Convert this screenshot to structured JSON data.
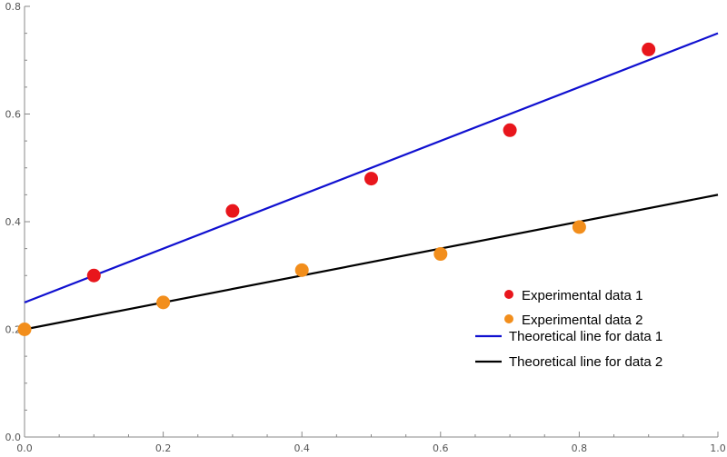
{
  "chart_data": {
    "type": "scatter",
    "xlim": [
      0,
      1
    ],
    "ylim": [
      0,
      0.8
    ],
    "x_ticks": [
      0.0,
      0.2,
      0.4,
      0.6,
      0.8,
      1.0
    ],
    "x_tick_labels": [
      "0.0",
      "0.2",
      "0.4",
      "0.6",
      "0.8",
      "1.0"
    ],
    "y_ticks": [
      0.0,
      0.2,
      0.4,
      0.6,
      0.8
    ],
    "y_tick_labels": [
      "0.0",
      "0.2",
      "0.4",
      "0.6",
      "0.8"
    ],
    "grid": false,
    "legend_position": "right",
    "scatter_series": [
      {
        "name": "Experimental data 1",
        "color": "#e8161c",
        "points": [
          [
            0.1,
            0.3
          ],
          [
            0.3,
            0.42
          ],
          [
            0.5,
            0.48
          ],
          [
            0.7,
            0.57
          ],
          [
            0.9,
            0.72
          ]
        ]
      },
      {
        "name": "Experimental data 2",
        "color": "#f28e1c",
        "points": [
          [
            0.0,
            0.2
          ],
          [
            0.2,
            0.25
          ],
          [
            0.4,
            0.31
          ],
          [
            0.6,
            0.34
          ],
          [
            0.8,
            0.39
          ]
        ]
      }
    ],
    "line_series": [
      {
        "name": "Theoretical line for data 1",
        "color": "#1010d0",
        "points": [
          [
            0.0,
            0.25
          ],
          [
            1.0,
            0.75
          ]
        ]
      },
      {
        "name": "Theoretical line for data 2",
        "color": "#000000",
        "points": [
          [
            0.0,
            0.2
          ],
          [
            1.0,
            0.45
          ]
        ]
      }
    ]
  }
}
